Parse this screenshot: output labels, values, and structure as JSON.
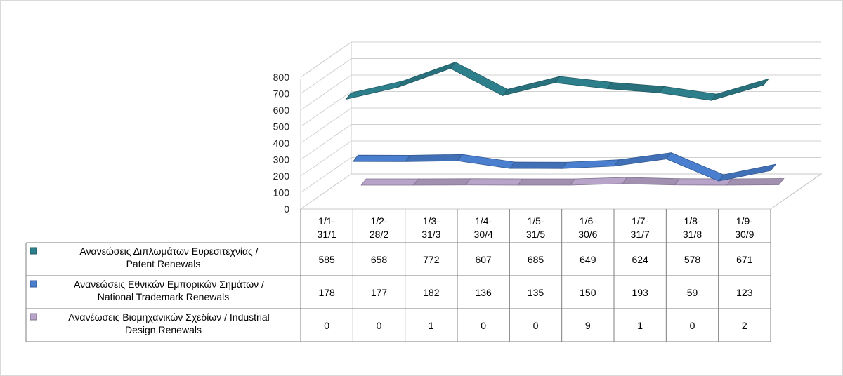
{
  "chart_data": {
    "type": "line",
    "style": "3d-ribbon-with-data-table",
    "categories": [
      [
        "1/1-",
        "31/1"
      ],
      [
        "1/2-",
        "28/2"
      ],
      [
        "1/3-",
        "31/3"
      ],
      [
        "1/4-",
        "30/4"
      ],
      [
        "1/5-",
        "31/5"
      ],
      [
        "1/6-",
        "30/6"
      ],
      [
        "1/7-",
        "31/7"
      ],
      [
        "1/8-",
        "31/8"
      ],
      [
        "1/9-",
        "30/9"
      ]
    ],
    "ylim": [
      0,
      800
    ],
    "yticks": [
      "0",
      "100",
      "200",
      "300",
      "400",
      "500",
      "600",
      "700",
      "800"
    ],
    "grid": true,
    "series": [
      {
        "name": [
          "Ανανεώσεις Διπλωμάτων Ευρεσιτεχνίας  /",
          "Patent Renewals"
        ],
        "values": [
          585,
          658,
          772,
          607,
          685,
          649,
          624,
          578,
          671
        ],
        "color": "#2e7f8c"
      },
      {
        "name": [
          "Ανανεώσεις Εθνικών Εμπορικών Σημάτων /",
          "National Trademark Renewals"
        ],
        "values": [
          178,
          177,
          182,
          136,
          135,
          150,
          193,
          59,
          123
        ],
        "color": "#4a7fcf"
      },
      {
        "name": [
          "Ανανέωσεις Βιομηχανικών Σχεδίων / Industrial",
          "Design Renewals"
        ],
        "values": [
          0,
          0,
          1,
          0,
          0,
          9,
          1,
          0,
          2
        ],
        "color": "#b8a4c9"
      }
    ]
  }
}
